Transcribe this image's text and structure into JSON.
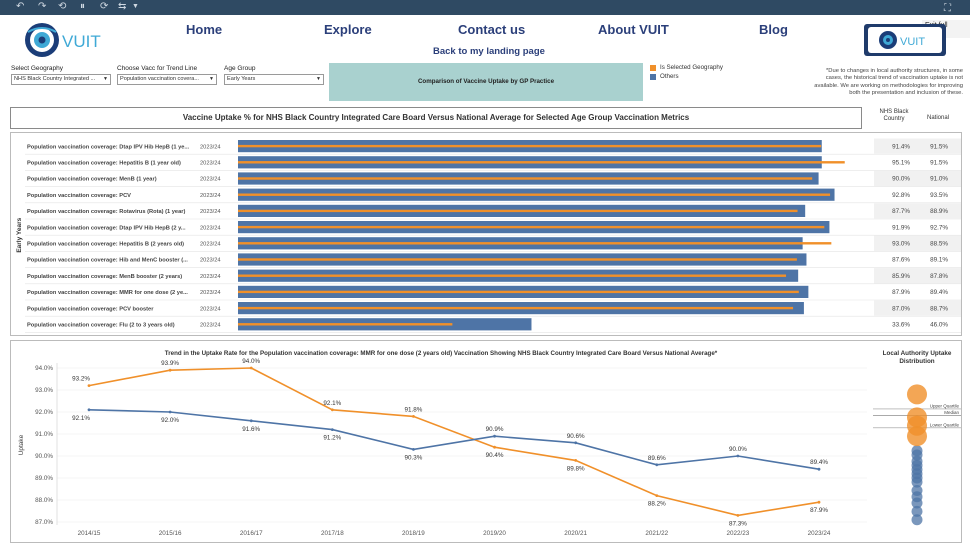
{
  "toolbar": {
    "icons": [
      "undo-icon",
      "redo-icon",
      "revert-icon",
      "pause-icon",
      "refresh-icon",
      "share-icon",
      "dropdown-icon"
    ]
  },
  "header": {
    "logo_text": "VUIT",
    "nav": [
      "Home",
      "Explore",
      "Contact us",
      "About VUIT",
      "Blog"
    ],
    "back_link": "Back to my landing page",
    "exit_fullscreen": "Exit full screen"
  },
  "filters": {
    "geography": {
      "label": "Select Geography",
      "value": "NHS Black Country Integrated ..."
    },
    "vacc": {
      "label": "Choose Vacc for Trend Line",
      "value": "Population vaccination covera..."
    },
    "age": {
      "label": "Age Group",
      "value": "Early Years"
    }
  },
  "compare_button": "Comparison of Vaccine Uptake by GP Practice",
  "legend": {
    "selected": "Is Selected Geography",
    "others": "Others",
    "selected_color": "#f0902a",
    "others_color": "#4e74a6"
  },
  "note": "*Due to changes in local authority structures, in some cases, the historical trend of vaccination uptake is not available. We are working on methodologies for improving both the presentation and inclusion of these.",
  "bar_title": "Vaccine Uptake % for NHS Black Country Integrated Care Board Versus National Average for Selected Age Group Vaccination Metrics",
  "columns": {
    "nhs": "NHS Black Country",
    "national": "National"
  },
  "chart_data": [
    {
      "type": "bar",
      "title": "Vaccine Uptake % for NHS Black Country Integrated Care Board Versus National Average for Selected Age Group Vaccination Metrics",
      "group_label": "Early Years",
      "period": "2023/24",
      "categories": [
        "Population vaccination coverage: Dtap IPV Hib HepB (1 ye...",
        "Population vaccination coverage: Hepatitis B (1 year old)",
        "Population vaccination coverage: MenB (1 year)",
        "Population vaccination coverage: PCV",
        "Population vaccination coverage: Rotavirus (Rota) (1 year)",
        "Population vaccination coverage: Dtap IPV Hib HepB (2 y...",
        "Population vaccination coverage: Hepatitis B (2 years old)",
        "Population vaccination coverage: Hib and MenC booster (...",
        "Population vaccination coverage: MenB booster (2 years)",
        "Population vaccination coverage: MMR for one dose (2 ye...",
        "Population vaccination coverage: PCV booster",
        "Population vaccination coverage: Flu (2 to 3 years old)"
      ],
      "nhs_values": [
        91.4,
        95.1,
        90.0,
        92.8,
        87.7,
        91.9,
        93.0,
        87.6,
        85.9,
        87.9,
        87.0,
        33.6
      ],
      "national_values": [
        91.5,
        91.5,
        91.0,
        93.5,
        88.9,
        92.7,
        88.5,
        89.1,
        87.8,
        89.4,
        88.7,
        46.0
      ],
      "nhs_labels": [
        "91.4%",
        "95.1%",
        "90.0%",
        "92.8%",
        "87.7%",
        "91.9%",
        "93.0%",
        "87.6%",
        "85.9%",
        "87.9%",
        "87.0%",
        "33.6%"
      ],
      "national_labels": [
        "91.5%",
        "91.5%",
        "91.0%",
        "93.5%",
        "88.9%",
        "92.7%",
        "88.5%",
        "89.1%",
        "87.8%",
        "89.4%",
        "88.7%",
        "46.0%"
      ],
      "xlim": [
        0,
        100
      ]
    },
    {
      "type": "line",
      "title": "Trend in the Uptake Rate for the Population vaccination coverage: MMR for one dose (2 years old) Vaccination Showing NHS Black Country Integrated Care Board Versus National Average*",
      "ylabel": "Uptake",
      "x": [
        "2014/15",
        "2015/16",
        "2016/17",
        "2017/18",
        "2018/19",
        "2019/20",
        "2020/21",
        "2021/22",
        "2022/23",
        "2023/24"
      ],
      "ylim": [
        87.0,
        94.0
      ],
      "yticks": [
        "94.0%",
        "93.0%",
        "92.0%",
        "91.0%",
        "90.0%",
        "89.0%",
        "88.0%",
        "87.0%"
      ],
      "series": [
        {
          "key": "nhs",
          "values": [
            93.2,
            93.9,
            94.0,
            92.1,
            91.8,
            90.4,
            89.8,
            88.2,
            87.3,
            87.9
          ],
          "labels": [
            "93.2%",
            "93.9%",
            "94.0%",
            "92.1%",
            "91.8%",
            "90.4%",
            "89.8%",
            "88.2%",
            "87.3%",
            "87.9%"
          ],
          "color": "#f0902a"
        },
        {
          "key": "national",
          "values": [
            92.1,
            92.0,
            91.6,
            91.2,
            90.3,
            90.9,
            90.6,
            89.6,
            90.0,
            89.4
          ],
          "labels": [
            "92.1%",
            "92.0%",
            "91.6%",
            "91.2%",
            "90.3%",
            "90.9%",
            "90.6%",
            "89.6%",
            "90.0%",
            "89.4%"
          ],
          "color": "#4e74a6"
        }
      ]
    },
    {
      "type": "scatter",
      "title": "Local Authority Uptake Distribution",
      "quartile_labels": [
        "Upper Quartile",
        "Median",
        "Lower Quartile"
      ],
      "selected_values": [
        92.6,
        91.5,
        91.1,
        90.6
      ],
      "other_values": [
        89.9,
        89.7,
        89.4,
        89.2,
        89.0,
        88.8,
        88.6,
        88.4,
        88.0,
        87.7,
        87.4,
        87.0,
        86.6
      ]
    }
  ]
}
